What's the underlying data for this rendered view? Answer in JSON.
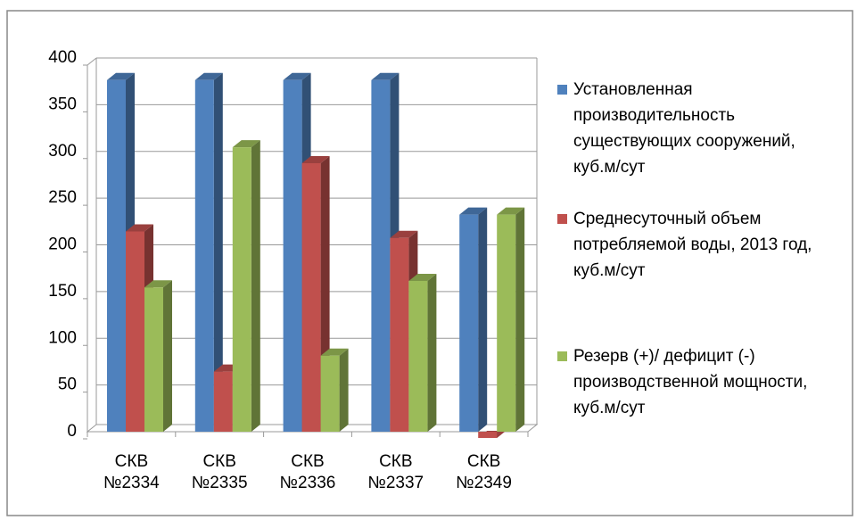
{
  "chart_data": {
    "type": "bar3d",
    "categories": [
      "СКВ №2334",
      "СКВ №2335",
      "СКВ №2336",
      "СКВ №2337",
      "СКВ №2349"
    ],
    "series": [
      {
        "name": "Установленная производительность существующих сооружений, куб.м/сут",
        "color": "#4f81bd",
        "values": [
          384,
          384,
          384,
          384,
          240
        ]
      },
      {
        "name": "Среднесуточный объем потребляемой воды, 2013 год, куб.м/сут",
        "color": "#c0504d",
        "values": [
          222,
          72,
          295,
          215,
          1
        ]
      },
      {
        "name": "Резерв (+)/ дефицит (-) производственной мощности, куб.м/сут",
        "color": "#9bbb59",
        "values": [
          162,
          312,
          89,
          169,
          240
        ]
      }
    ],
    "ylim": [
      0,
      400
    ],
    "yticks": [
      0,
      50,
      100,
      150,
      200,
      250,
      300,
      350,
      400
    ],
    "grid": true,
    "legend": "right"
  }
}
